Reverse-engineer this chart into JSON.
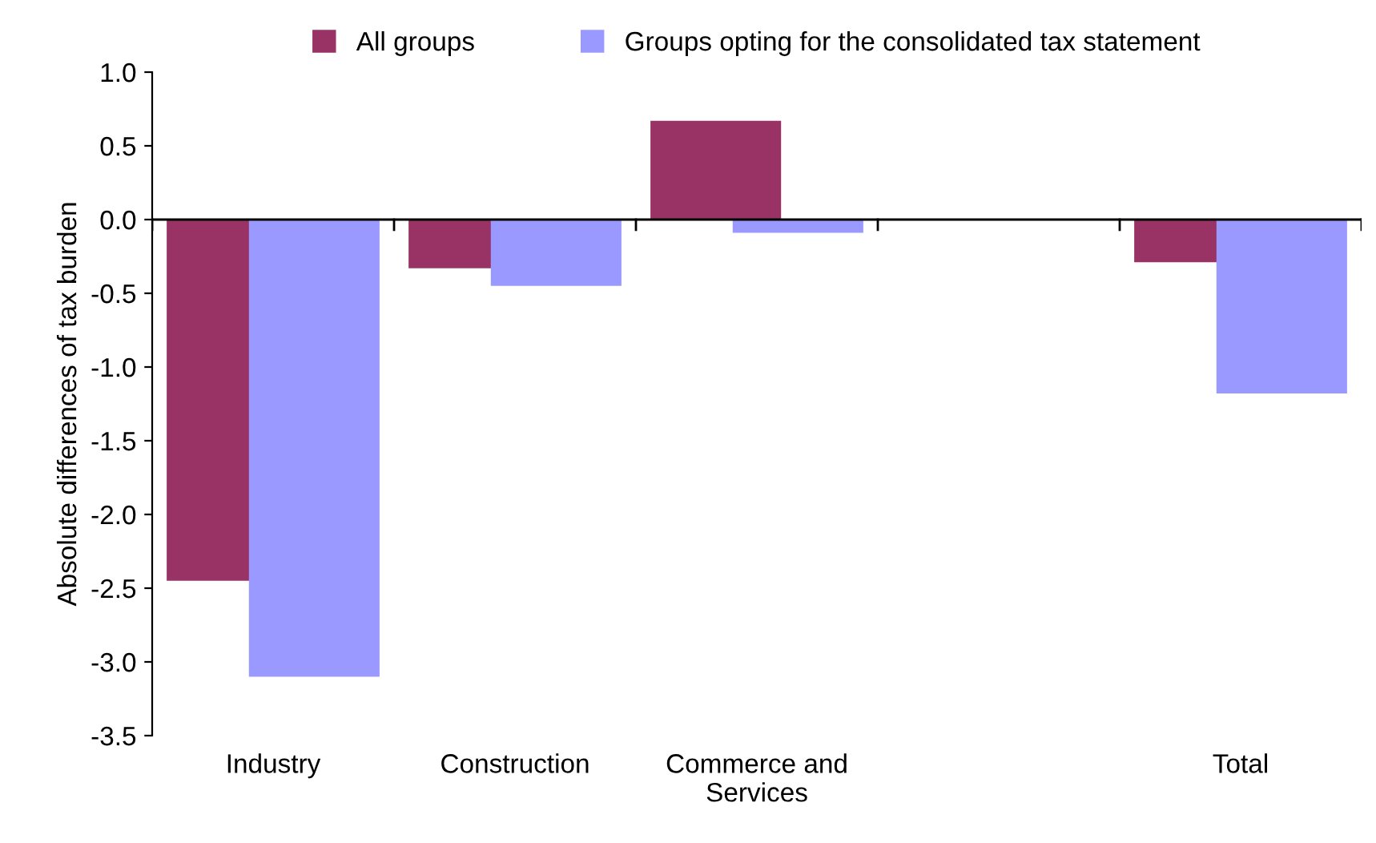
{
  "chart_data": {
    "type": "bar",
    "ylabel": "Absolute differences of tax burden",
    "categories": [
      "Industry",
      "Construction",
      "Commerce and\nServices",
      null,
      "Total"
    ],
    "series": [
      {
        "name": "All groups",
        "color": "#993366",
        "values": [
          -2.45,
          -0.33,
          0.67,
          null,
          -0.29
        ]
      },
      {
        "name": "Groups opting for the consolidated tax statement",
        "color": "#9999ff",
        "values": [
          -3.1,
          -0.45,
          -0.09,
          null,
          -1.18
        ]
      }
    ],
    "ylim": [
      -3.5,
      1.0
    ],
    "yticks": [
      {
        "value": -3.5,
        "label": "-3.5"
      },
      {
        "value": -3.0,
        "label": "-3.0"
      },
      {
        "value": -2.5,
        "label": "-2.5"
      },
      {
        "value": -2.0,
        "label": "-2.0"
      },
      {
        "value": -1.5,
        "label": "-1.5"
      },
      {
        "value": -1.0,
        "label": "-1.0"
      },
      {
        "value": -0.5,
        "label": "-0.5"
      },
      {
        "value": 0.0,
        "label": "0.0"
      },
      {
        "value": 0.5,
        "label": "0.5"
      },
      {
        "value": 1.0,
        "label": "1.0"
      }
    ],
    "ref_lines": [
      {
        "axis": "y",
        "value": 0,
        "color": "#000000"
      }
    ],
    "grid": false,
    "legend": "top"
  }
}
